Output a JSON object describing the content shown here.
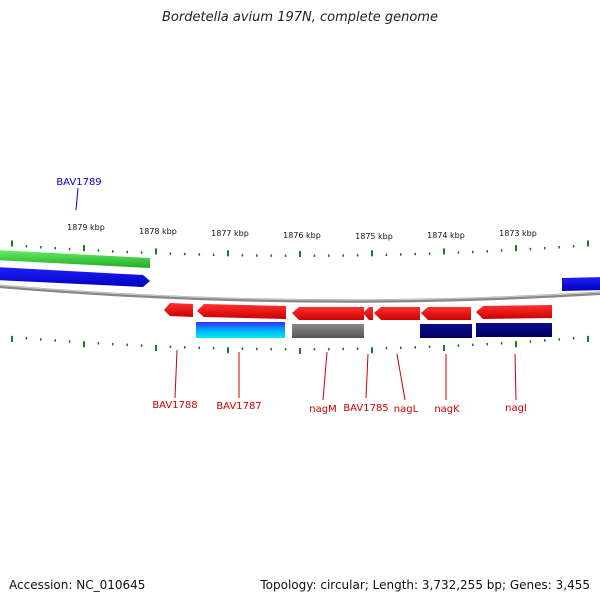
{
  "title": "Bordetella avium 197N, complete genome",
  "footer": {
    "accession": "Accession: NC_010645",
    "summary": "Topology: circular; Length: 3,732,255 bp; Genes: 3,455"
  },
  "colors": {
    "forward_gene": "#0000ee",
    "reverse_gene": "#ee0000",
    "green_track": "#33cc33",
    "dark_blue_track": "#000080",
    "gray_track": "#666666",
    "cyan_track": "#00cccc",
    "backbone": "#888888",
    "ticks": "#227722"
  },
  "scale": {
    "labels": [
      "1879 kbp",
      "1878 kbp",
      "1877 kbp",
      "1876 kbp",
      "1875 kbp",
      "1874 kbp",
      "1873 kbp"
    ]
  },
  "gene_labels": {
    "top": [
      {
        "name": "BAV1789",
        "color": "#0000cc"
      }
    ],
    "bottom": [
      {
        "name": "BAV1788",
        "color": "#cc0000"
      },
      {
        "name": "BAV1787",
        "color": "#cc0000"
      },
      {
        "name": "nagM",
        "color": "#cc0000"
      },
      {
        "name": "BAV1785",
        "color": "#cc0000"
      },
      {
        "name": "nagL",
        "color": "#cc0000"
      },
      {
        "name": "nagK",
        "color": "#cc0000"
      },
      {
        "name": "nagI",
        "color": "#cc0000"
      }
    ]
  }
}
